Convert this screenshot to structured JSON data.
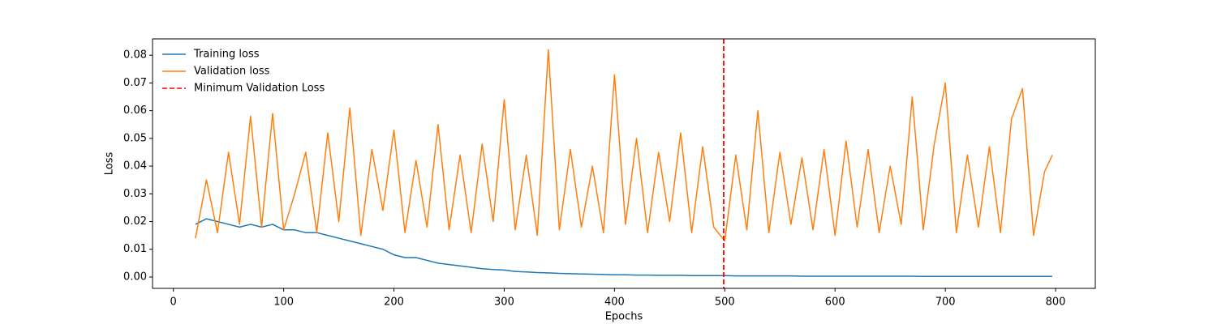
{
  "chart_data": {
    "type": "line",
    "xlabel": "Epochs",
    "ylabel": "Loss",
    "x": [
      20,
      30,
      40,
      50,
      60,
      70,
      80,
      90,
      100,
      110,
      120,
      130,
      140,
      150,
      160,
      170,
      180,
      190,
      200,
      210,
      220,
      230,
      240,
      250,
      260,
      270,
      280,
      290,
      300,
      310,
      320,
      330,
      340,
      350,
      360,
      370,
      380,
      390,
      400,
      410,
      420,
      430,
      440,
      450,
      460,
      470,
      480,
      490,
      500,
      510,
      520,
      530,
      540,
      550,
      560,
      570,
      580,
      590,
      600,
      610,
      620,
      630,
      640,
      650,
      660,
      670,
      680,
      690,
      700,
      710,
      720,
      730,
      740,
      750,
      760,
      770,
      780,
      790,
      797
    ],
    "series": [
      {
        "name": "Training loss",
        "color": "#1f77b4",
        "values": [
          0.019,
          0.021,
          0.02,
          0.019,
          0.018,
          0.019,
          0.018,
          0.019,
          0.017,
          0.017,
          0.016,
          0.016,
          0.015,
          0.014,
          0.013,
          0.012,
          0.011,
          0.01,
          0.008,
          0.007,
          0.007,
          0.006,
          0.005,
          0.0045,
          0.004,
          0.0035,
          0.003,
          0.0027,
          0.0025,
          0.002,
          0.0018,
          0.0016,
          0.0015,
          0.0013,
          0.0012,
          0.0011,
          0.001,
          0.0009,
          0.0008,
          0.0008,
          0.0007,
          0.0007,
          0.0006,
          0.0006,
          0.0006,
          0.0005,
          0.0005,
          0.0005,
          0.0005,
          0.0004,
          0.0004,
          0.0004,
          0.0004,
          0.0004,
          0.0004,
          0.0003,
          0.0003,
          0.0003,
          0.0003,
          0.0003,
          0.0003,
          0.0003,
          0.0003,
          0.0003,
          0.0003,
          0.0003,
          0.0002,
          0.0002,
          0.0002,
          0.0002,
          0.0002,
          0.0002,
          0.0002,
          0.0002,
          0.0002,
          0.0002,
          0.0002,
          0.0002,
          0.0002
        ]
      },
      {
        "name": "Validation loss",
        "color": "#ff7f0e",
        "values": [
          0.014,
          0.035,
          0.016,
          0.045,
          0.019,
          0.058,
          0.018,
          0.059,
          0.017,
          0.03,
          0.045,
          0.016,
          0.052,
          0.02,
          0.061,
          0.015,
          0.046,
          0.024,
          0.053,
          0.016,
          0.042,
          0.018,
          0.055,
          0.017,
          0.044,
          0.016,
          0.048,
          0.02,
          0.064,
          0.017,
          0.044,
          0.015,
          0.082,
          0.017,
          0.046,
          0.018,
          0.04,
          0.016,
          0.073,
          0.019,
          0.05,
          0.016,
          0.045,
          0.02,
          0.052,
          0.016,
          0.047,
          0.018,
          0.013,
          0.044,
          0.017,
          0.06,
          0.016,
          0.045,
          0.019,
          0.043,
          0.017,
          0.046,
          0.015,
          0.049,
          0.018,
          0.046,
          0.016,
          0.04,
          0.019,
          0.065,
          0.017,
          0.048,
          0.07,
          0.016,
          0.044,
          0.018,
          0.047,
          0.016,
          0.057,
          0.068,
          0.015,
          0.038,
          0.044
        ]
      }
    ],
    "vline": {
      "name": "Minimum Validation Loss",
      "color": "#ff0000",
      "x": 499
    },
    "xlim": [
      -18.9,
      836
    ],
    "ylim": [
      -0.0041,
      0.0859
    ],
    "xticks": [
      0,
      100,
      200,
      300,
      400,
      500,
      600,
      700,
      800
    ],
    "yticks": [
      {
        "value": 0,
        "label": "0.00"
      },
      {
        "value": 0.01,
        "label": "0.01"
      },
      {
        "value": 0.02,
        "label": "0.02"
      },
      {
        "value": 0.03,
        "label": "0.03"
      },
      {
        "value": 0.04,
        "label": "0.04"
      },
      {
        "value": 0.05,
        "label": "0.05"
      },
      {
        "value": 0.06,
        "label": "0.06"
      },
      {
        "value": 0.07,
        "label": "0.07"
      },
      {
        "value": 0.08,
        "label": "0.08"
      }
    ],
    "legend": "upper left",
    "grid": false
  }
}
